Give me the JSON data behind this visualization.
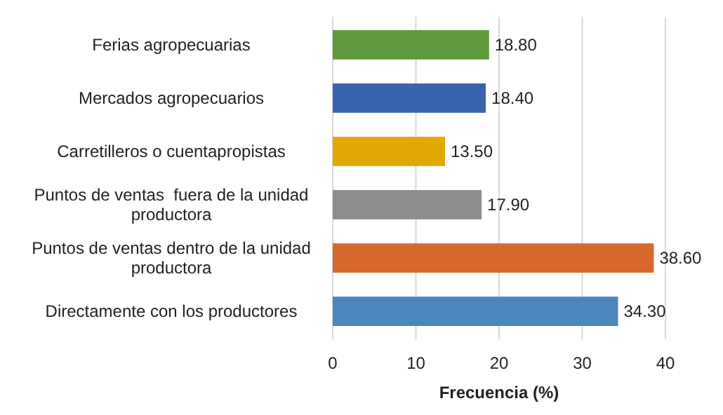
{
  "chart_data": {
    "type": "bar",
    "orientation": "horizontal",
    "xlabel": "Frecuencia (%)",
    "categories": [
      "Ferias agropecuarias",
      "Mercados agropecuarios",
      "Carretilleros o cuentapropistas",
      "Puntos de ventas  fuera de la unidad productora",
      "Puntos de ventas dentro de la unidad productora",
      "Directamente con los productores"
    ],
    "values": [
      18.8,
      18.4,
      13.5,
      17.9,
      38.6,
      34.3
    ],
    "colors": [
      "#5f9a3c",
      "#3a63ad",
      "#e0a800",
      "#8c8c8c",
      "#d7692c",
      "#4d85be"
    ],
    "value_labels": [
      "18.80",
      "18.40",
      "13.50",
      "17.90",
      "38.60",
      "34.30"
    ],
    "xlim": [
      0,
      40
    ],
    "xticks": [
      0,
      10,
      20,
      30,
      40
    ],
    "grid": "x"
  }
}
